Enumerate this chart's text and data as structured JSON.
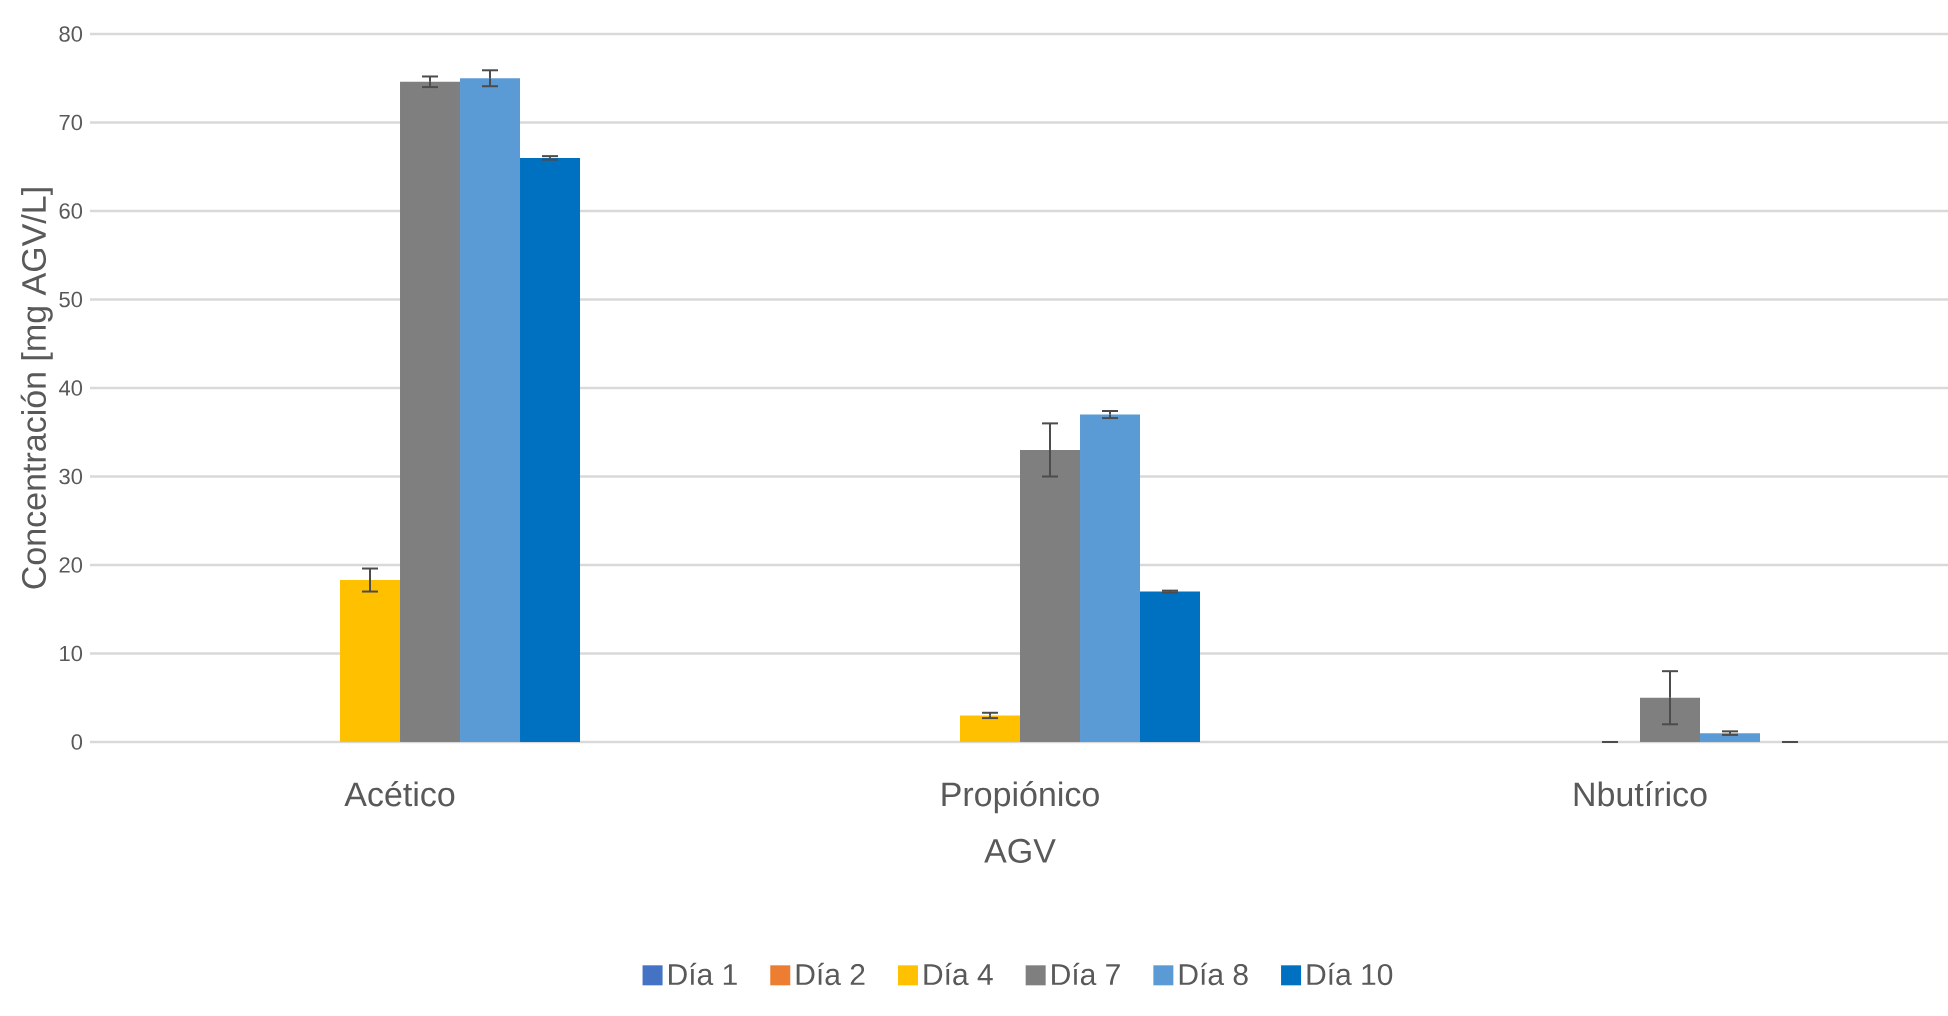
{
  "chart_data": {
    "type": "bar",
    "xlabel": "AGV",
    "ylabel": "Concentración [mg AGV/L]",
    "categories": [
      "Acético",
      "Propiónico",
      "Nbutírico"
    ],
    "series": [
      {
        "name": "Día 1",
        "color": "#4472c4",
        "values": [
          0,
          0,
          0
        ]
      },
      {
        "name": "Día 2",
        "color": "#ed7d31",
        "values": [
          0,
          0,
          0
        ]
      },
      {
        "name": "Día 4",
        "color": "#ffc000",
        "values": [
          18.3,
          3,
          0
        ],
        "errors": [
          1.3,
          0.3,
          null
        ]
      },
      {
        "name": "Día 7",
        "color": "#7f7f7f",
        "values": [
          74.6,
          33,
          5
        ],
        "errors": [
          0.6,
          3,
          3
        ]
      },
      {
        "name": "Día 8",
        "color": "#5b9bd5",
        "values": [
          75,
          37,
          1
        ],
        "errors": [
          0.9,
          0.4,
          0.2
        ]
      },
      {
        "name": "Día 10",
        "color": "#0070c0",
        "values": [
          66,
          17,
          0
        ],
        "errors": [
          0.2,
          0.1,
          null
        ]
      }
    ],
    "ylim": [
      0,
      80
    ],
    "yticks": [
      0,
      10,
      20,
      30,
      40,
      50,
      60,
      70,
      80
    ],
    "grid": "y",
    "legend": "bottom"
  }
}
